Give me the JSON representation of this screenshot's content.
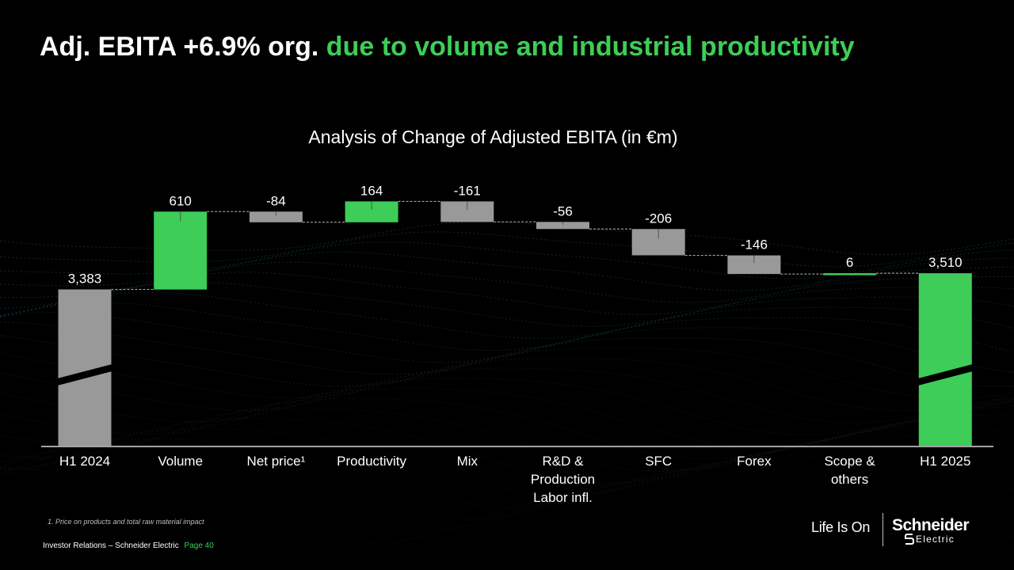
{
  "headline": {
    "white_part": "Adj. EBITA +6.9% org.",
    "green_part": "due to volume and industrial productivity"
  },
  "colors": {
    "green": "#3dcd58",
    "grey": "#999999",
    "background": "#000000"
  },
  "chart_data": {
    "type": "waterfall",
    "title": "Analysis of Change of Adjusted EBITA (in €m)",
    "ylim": [
      3300,
      4100
    ],
    "axis_break": true,
    "categories": [
      [
        "H1 2024"
      ],
      [
        "Volume"
      ],
      [
        "Net price¹"
      ],
      [
        "Productivity"
      ],
      [
        "Mix"
      ],
      [
        "R&D &",
        "Production",
        "Labor infl."
      ],
      [
        "SFC"
      ],
      [
        "Forex"
      ],
      [
        "Scope &",
        "others"
      ],
      [
        "H1 2025"
      ]
    ],
    "values": [
      3383,
      610,
      -84,
      164,
      -161,
      -56,
      -206,
      -146,
      6,
      3510
    ],
    "labels": [
      "3,383",
      "610",
      "-84",
      "164",
      "-161",
      "-56",
      "-206",
      "-146",
      "6",
      "3,510"
    ],
    "kinds": [
      "total",
      "delta",
      "delta",
      "delta",
      "delta",
      "delta",
      "delta",
      "delta",
      "delta",
      "total"
    ],
    "bar_colors": [
      "grey",
      "green",
      "grey",
      "green",
      "grey",
      "grey",
      "grey",
      "grey",
      "green",
      "green"
    ]
  },
  "footnote": "1. Price on products and total raw material impact",
  "footer": {
    "left_text": "Investor Relations – Schneider Electric",
    "page": "Page 40"
  },
  "brand": {
    "tagline": "Life Is On",
    "logo_name": "Schneider",
    "logo_sub": "Electric"
  }
}
